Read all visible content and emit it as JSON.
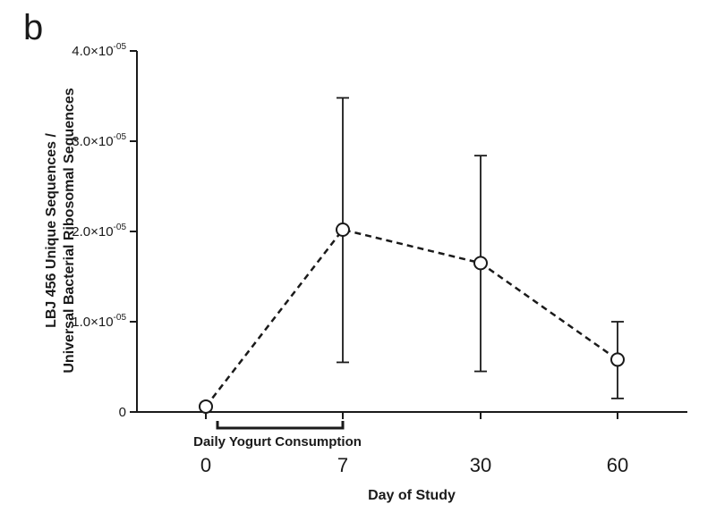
{
  "panel_label": "b",
  "chart_data": {
    "type": "line",
    "title": "",
    "xlabel": "Day of Study",
    "ylabel_lines": [
      "LBJ 456 Unique Sequences /",
      "Universal Bacterial Ribosomal Sequences"
    ],
    "categories": [
      "0",
      "7",
      "30",
      "60"
    ],
    "y_ticks": [
      {
        "value": 0,
        "mantissa": "0",
        "exponent": ""
      },
      {
        "value": 1e-05,
        "mantissa": "1.0×10",
        "exponent": "-05"
      },
      {
        "value": 2e-05,
        "mantissa": "2.0×10",
        "exponent": "-05"
      },
      {
        "value": 3e-05,
        "mantissa": "3.0×10",
        "exponent": "-05"
      },
      {
        "value": 4e-05,
        "mantissa": "4.0×10",
        "exponent": "-05"
      }
    ],
    "ylim": [
      0,
      4e-05
    ],
    "series": [
      {
        "values": [
          6e-07,
          2.02e-05,
          1.65e-05,
          5.8e-06
        ],
        "err_low": [
          null,
          5.5e-06,
          4.5e-06,
          1.5e-06
        ],
        "err_high": [
          null,
          3.48e-05,
          2.84e-05,
          1e-05
        ]
      }
    ],
    "annotation": {
      "text": "Daily Yogurt Consumption",
      "from_category": 0,
      "to_category": 1
    },
    "grid": false,
    "legend": "none"
  }
}
